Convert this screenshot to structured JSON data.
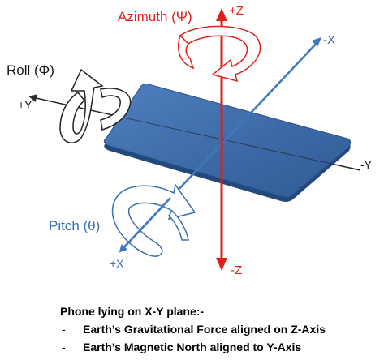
{
  "labels": {
    "azimuth": "Azimuth (Ψ)",
    "plus_z": "+Z",
    "minus_z": "-Z",
    "minus_x": "-X",
    "plus_x": "+X",
    "roll": "Roll (Φ)",
    "plus_y": "+Y",
    "minus_y": "-Y",
    "pitch": "Pitch (θ)"
  },
  "caption": {
    "heading": "Phone lying on X-Y plane:-",
    "bullets": [
      {
        "marker": "-",
        "text": "Earth’s Gravitational Force  aligned on Z-Axis"
      },
      {
        "marker": "-",
        "text": "Earth’s Magnetic North aligned to Y-Axis"
      }
    ]
  },
  "colors": {
    "z_axis": "#e0201b",
    "x_axis": "#3f76bd",
    "y_axis": "#333333",
    "phone": "#3d6aa6",
    "pitch_arrow": "#3a6fb0",
    "roll_arrow": "#222222"
  }
}
